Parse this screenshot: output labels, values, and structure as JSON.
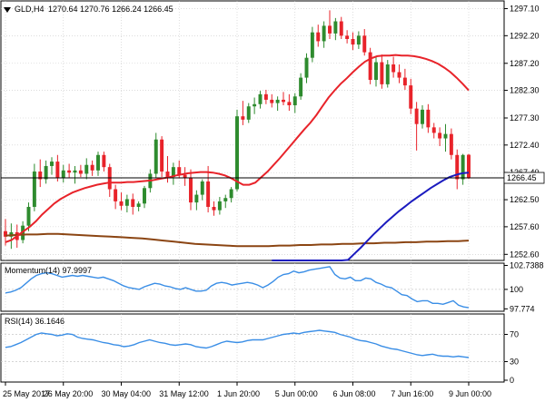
{
  "header": {
    "title": "GLD,H4",
    "ohlc": "1270.64 1270.76 1266.24 1266.45"
  },
  "price_axis": {
    "ticks": [
      "1297.10",
      "1292.20",
      "1287.20",
      "1282.30",
      "1277.30",
      "1272.40",
      "1267.40",
      "1262.50",
      "1257.60",
      "1252.60"
    ],
    "current_label": "1266.45"
  },
  "momentum_panel": {
    "label": "Momentum(14) 97.9997",
    "ticks": [
      "102.7388",
      "100",
      "97.774"
    ]
  },
  "rsi_panel": {
    "label": "RSI(14) 36.1646",
    "ticks": [
      "70",
      "30",
      "0"
    ]
  },
  "time_axis": {
    "labels": [
      "25 May 2017",
      "26 May 20:00",
      "30 May 04:00",
      "31 May 12:00",
      "1 Jun 20:00",
      "5 Jun 00:00",
      "6 Jun 08:00",
      "7 Jun 16:00",
      "9 Jun 00:00"
    ]
  },
  "colors": {
    "background": "#ffffff",
    "grid": "#c8c8c8",
    "bull": "#2e8b2e",
    "bear": "#e8232a",
    "sma_fast": "#e8232a",
    "sma_mid": "#1b1bbf",
    "sma_slow": "#8b4513",
    "indicator": "#3a8ee6",
    "text": "#000000"
  },
  "chart_data": [
    {
      "type": "candlestick",
      "symbol": "GLD",
      "timeframe": "H4",
      "current_price": 1266.45,
      "ylim": [
        1251.5,
        1298.5
      ],
      "y_ticks": [
        1297.1,
        1292.2,
        1287.2,
        1282.3,
        1277.3,
        1272.4,
        1267.4,
        1262.5,
        1257.6,
        1252.6
      ],
      "candles": [
        {
          "o": 1256.8,
          "h": 1259.0,
          "l": 1254.2,
          "c": 1255.8
        },
        {
          "o": 1255.8,
          "h": 1258.2,
          "l": 1253.6,
          "c": 1256.6
        },
        {
          "o": 1256.6,
          "h": 1258.0,
          "l": 1253.8,
          "c": 1255.2
        },
        {
          "o": 1255.2,
          "h": 1258.6,
          "l": 1254.6,
          "c": 1257.8
        },
        {
          "o": 1257.8,
          "h": 1262.0,
          "l": 1256.8,
          "c": 1261.2
        },
        {
          "o": 1261.2,
          "h": 1269.0,
          "l": 1260.4,
          "c": 1267.6
        },
        {
          "o": 1267.6,
          "h": 1269.8,
          "l": 1264.8,
          "c": 1266.2
        },
        {
          "o": 1266.2,
          "h": 1269.6,
          "l": 1265.4,
          "c": 1268.6
        },
        {
          "o": 1268.6,
          "h": 1270.2,
          "l": 1267.0,
          "c": 1269.4
        },
        {
          "o": 1269.4,
          "h": 1270.6,
          "l": 1265.8,
          "c": 1266.4
        },
        {
          "o": 1266.4,
          "h": 1268.8,
          "l": 1265.6,
          "c": 1267.8
        },
        {
          "o": 1267.8,
          "h": 1269.0,
          "l": 1266.4,
          "c": 1267.4
        },
        {
          "o": 1267.4,
          "h": 1268.6,
          "l": 1265.4,
          "c": 1267.8
        },
        {
          "o": 1267.8,
          "h": 1268.8,
          "l": 1266.6,
          "c": 1267.2
        },
        {
          "o": 1267.2,
          "h": 1270.0,
          "l": 1266.2,
          "c": 1268.8
        },
        {
          "o": 1268.8,
          "h": 1269.6,
          "l": 1266.8,
          "c": 1267.8
        },
        {
          "o": 1267.8,
          "h": 1271.2,
          "l": 1266.8,
          "c": 1270.6
        },
        {
          "o": 1270.6,
          "h": 1271.2,
          "l": 1267.6,
          "c": 1268.4
        },
        {
          "o": 1268.4,
          "h": 1269.0,
          "l": 1263.0,
          "c": 1264.4
        },
        {
          "o": 1264.4,
          "h": 1265.2,
          "l": 1260.8,
          "c": 1262.2
        },
        {
          "o": 1262.2,
          "h": 1263.8,
          "l": 1260.6,
          "c": 1261.4
        },
        {
          "o": 1261.4,
          "h": 1263.4,
          "l": 1260.2,
          "c": 1262.6
        },
        {
          "o": 1262.6,
          "h": 1263.6,
          "l": 1259.8,
          "c": 1261.2
        },
        {
          "o": 1261.2,
          "h": 1262.2,
          "l": 1260.4,
          "c": 1261.8
        },
        {
          "o": 1261.8,
          "h": 1265.0,
          "l": 1261.0,
          "c": 1264.6
        },
        {
          "o": 1264.6,
          "h": 1268.0,
          "l": 1263.8,
          "c": 1267.2
        },
        {
          "o": 1267.2,
          "h": 1274.6,
          "l": 1266.4,
          "c": 1273.4
        },
        {
          "o": 1273.4,
          "h": 1274.0,
          "l": 1266.6,
          "c": 1267.6
        },
        {
          "o": 1267.6,
          "h": 1270.4,
          "l": 1265.6,
          "c": 1266.6
        },
        {
          "o": 1266.6,
          "h": 1269.2,
          "l": 1265.2,
          "c": 1268.4
        },
        {
          "o": 1268.4,
          "h": 1269.6,
          "l": 1266.4,
          "c": 1267.0
        },
        {
          "o": 1267.0,
          "h": 1268.4,
          "l": 1265.0,
          "c": 1266.4
        },
        {
          "o": 1266.4,
          "h": 1268.0,
          "l": 1260.6,
          "c": 1262.0
        },
        {
          "o": 1262.0,
          "h": 1264.2,
          "l": 1260.6,
          "c": 1263.4
        },
        {
          "o": 1263.4,
          "h": 1266.2,
          "l": 1262.4,
          "c": 1265.8
        },
        {
          "o": 1265.8,
          "h": 1268.6,
          "l": 1260.2,
          "c": 1261.2
        },
        {
          "o": 1261.2,
          "h": 1262.2,
          "l": 1259.6,
          "c": 1260.6
        },
        {
          "o": 1260.6,
          "h": 1263.0,
          "l": 1259.8,
          "c": 1262.2
        },
        {
          "o": 1262.2,
          "h": 1263.4,
          "l": 1261.0,
          "c": 1262.8
        },
        {
          "o": 1262.8,
          "h": 1264.8,
          "l": 1262.0,
          "c": 1264.4
        },
        {
          "o": 1264.4,
          "h": 1278.8,
          "l": 1264.0,
          "c": 1277.6
        },
        {
          "o": 1277.6,
          "h": 1280.4,
          "l": 1276.0,
          "c": 1277.0
        },
        {
          "o": 1277.0,
          "h": 1280.0,
          "l": 1276.4,
          "c": 1279.4
        },
        {
          "o": 1279.4,
          "h": 1281.0,
          "l": 1278.0,
          "c": 1279.8
        },
        {
          "o": 1279.8,
          "h": 1282.2,
          "l": 1279.0,
          "c": 1281.6
        },
        {
          "o": 1281.6,
          "h": 1282.4,
          "l": 1279.8,
          "c": 1280.6
        },
        {
          "o": 1280.6,
          "h": 1281.6,
          "l": 1279.2,
          "c": 1280.0
        },
        {
          "o": 1280.0,
          "h": 1281.2,
          "l": 1278.6,
          "c": 1280.6
        },
        {
          "o": 1280.6,
          "h": 1282.0,
          "l": 1279.6,
          "c": 1280.2
        },
        {
          "o": 1280.2,
          "h": 1281.6,
          "l": 1278.6,
          "c": 1279.6
        },
        {
          "o": 1279.6,
          "h": 1281.8,
          "l": 1278.2,
          "c": 1281.2
        },
        {
          "o": 1281.2,
          "h": 1285.4,
          "l": 1280.6,
          "c": 1284.6
        },
        {
          "o": 1284.6,
          "h": 1289.0,
          "l": 1283.6,
          "c": 1288.2
        },
        {
          "o": 1288.2,
          "h": 1293.8,
          "l": 1287.4,
          "c": 1292.8
        },
        {
          "o": 1292.8,
          "h": 1294.2,
          "l": 1290.2,
          "c": 1291.2
        },
        {
          "o": 1291.2,
          "h": 1294.8,
          "l": 1290.0,
          "c": 1294.0
        },
        {
          "o": 1294.0,
          "h": 1296.8,
          "l": 1291.6,
          "c": 1292.6
        },
        {
          "o": 1292.6,
          "h": 1295.4,
          "l": 1291.4,
          "c": 1294.8
        },
        {
          "o": 1294.8,
          "h": 1295.6,
          "l": 1291.6,
          "c": 1292.2
        },
        {
          "o": 1292.2,
          "h": 1293.2,
          "l": 1290.8,
          "c": 1291.6
        },
        {
          "o": 1291.6,
          "h": 1292.8,
          "l": 1289.6,
          "c": 1290.6
        },
        {
          "o": 1290.6,
          "h": 1293.0,
          "l": 1289.8,
          "c": 1292.2
        },
        {
          "o": 1292.2,
          "h": 1293.4,
          "l": 1288.6,
          "c": 1289.2
        },
        {
          "o": 1289.2,
          "h": 1290.0,
          "l": 1283.4,
          "c": 1284.2
        },
        {
          "o": 1284.2,
          "h": 1288.4,
          "l": 1283.0,
          "c": 1287.4
        },
        {
          "o": 1287.4,
          "h": 1288.8,
          "l": 1282.6,
          "c": 1283.4
        },
        {
          "o": 1283.4,
          "h": 1287.8,
          "l": 1282.8,
          "c": 1287.0
        },
        {
          "o": 1287.0,
          "h": 1288.4,
          "l": 1284.6,
          "c": 1285.6
        },
        {
          "o": 1285.6,
          "h": 1287.0,
          "l": 1283.6,
          "c": 1284.6
        },
        {
          "o": 1284.6,
          "h": 1286.2,
          "l": 1282.4,
          "c": 1283.2
        },
        {
          "o": 1283.2,
          "h": 1284.4,
          "l": 1278.0,
          "c": 1279.0
        },
        {
          "o": 1279.0,
          "h": 1280.2,
          "l": 1271.4,
          "c": 1276.2
        },
        {
          "o": 1276.2,
          "h": 1279.6,
          "l": 1275.4,
          "c": 1278.8
        },
        {
          "o": 1278.8,
          "h": 1279.8,
          "l": 1274.6,
          "c": 1275.6
        },
        {
          "o": 1275.6,
          "h": 1276.4,
          "l": 1273.6,
          "c": 1274.6
        },
        {
          "o": 1274.6,
          "h": 1275.6,
          "l": 1272.2,
          "c": 1273.6
        },
        {
          "o": 1273.6,
          "h": 1276.2,
          "l": 1271.2,
          "c": 1274.4
        },
        {
          "o": 1274.4,
          "h": 1275.4,
          "l": 1269.8,
          "c": 1270.6
        },
        {
          "o": 1270.6,
          "h": 1271.6,
          "l": 1264.4,
          "c": 1266.2
        },
        {
          "o": 1266.2,
          "h": 1270.8,
          "l": 1265.2,
          "c": 1270.6
        },
        {
          "o": 1270.64,
          "h": 1270.76,
          "l": 1266.24,
          "c": 1266.45
        }
      ],
      "sma_fast": [
        1254.8,
        1255.2,
        1256.0,
        1256.8,
        1257.6,
        1258.6,
        1259.8,
        1260.8,
        1261.8,
        1262.6,
        1263.2,
        1263.8,
        1264.2,
        1264.6,
        1264.9,
        1265.2,
        1265.4,
        1265.6,
        1265.6,
        1265.6,
        1265.7,
        1265.7,
        1265.8,
        1265.9,
        1266.0,
        1266.2,
        1266.4,
        1266.6,
        1266.9,
        1267.1,
        1267.3,
        1267.4,
        1267.5,
        1267.5,
        1267.4,
        1267.2,
        1266.9,
        1266.4,
        1265.8,
        1265.2,
        1265.2,
        1265.6,
        1266.6,
        1267.6,
        1268.8,
        1270.0,
        1271.3,
        1272.6,
        1273.9,
        1275.2,
        1276.4,
        1277.8,
        1279.4,
        1281.0,
        1282.3,
        1283.5,
        1284.5,
        1285.6,
        1286.6,
        1287.5,
        1288.1,
        1288.5,
        1288.6,
        1288.6,
        1288.7,
        1288.6,
        1288.6,
        1288.5,
        1288.3,
        1288.0,
        1287.6,
        1287.1,
        1286.4,
        1285.6,
        1284.6,
        1283.5,
        1282.3
      ],
      "sma_mid": [
        1242.0,
        1242.6,
        1243.3,
        1244.0,
        1244.7,
        1245.4,
        1246.2,
        1247.0,
        1247.8,
        1248.7,
        1249.6,
        1250.6,
        1251.6,
        1252.7,
        1253.8,
        1255.0,
        1256.2,
        1257.3,
        1258.4,
        1259.4,
        1260.4,
        1261.3,
        1262.2,
        1263.0,
        1263.8,
        1264.6,
        1265.3,
        1266.0,
        1266.6,
        1267.0,
        1267.3,
        1267.4
      ],
      "sma_slow": [
        1256.0,
        1256.1,
        1256.2,
        1256.2,
        1256.3,
        1256.3,
        1256.2,
        1256.1,
        1256.0,
        1255.9,
        1255.8,
        1255.7,
        1255.6,
        1255.5,
        1255.3,
        1255.1,
        1254.9,
        1254.7,
        1254.5,
        1254.4,
        1254.3,
        1254.2,
        1254.1,
        1254.1,
        1254.1,
        1254.1,
        1254.2,
        1254.2,
        1254.3,
        1254.3,
        1254.4,
        1254.4,
        1254.5,
        1254.5,
        1254.6,
        1254.6,
        1254.7,
        1254.7,
        1254.8,
        1254.8,
        1254.9,
        1254.9,
        1255.0,
        1255.0,
        1255.1
      ],
      "sma_mid_start_index": 46,
      "x_ticks_index": [
        0,
        10,
        20,
        30,
        40,
        50,
        60,
        70,
        80
      ]
    },
    {
      "type": "line",
      "name": "Momentum(14)",
      "ylim": [
        97.5,
        103.0
      ],
      "y_ticks": [
        102.7388,
        100,
        97.774
      ],
      "reference_line": 100,
      "values": [
        99.6,
        99.7,
        99.9,
        100.2,
        100.7,
        101.2,
        101.6,
        101.8,
        101.9,
        101.8,
        101.6,
        101.4,
        101.5,
        101.6,
        101.5,
        101.6,
        101.5,
        101.4,
        101.3,
        101.4,
        101.2,
        101.0,
        100.7,
        100.4,
        100.2,
        100.1,
        100.0,
        100.3,
        100.5,
        100.7,
        100.6,
        100.4,
        100.3,
        100.1,
        100.0,
        100.2,
        100.0,
        99.8,
        99.8,
        99.9,
        100.4,
        100.7,
        100.8,
        100.7,
        100.5,
        100.6,
        100.7,
        100.8,
        100.7,
        100.5,
        100.2,
        100.5,
        100.9,
        101.4,
        101.7,
        101.8,
        102.1,
        101.9,
        102.0,
        102.2,
        102.3,
        102.4,
        102.5,
        102.6,
        101.7,
        101.3,
        101.2,
        101.4,
        101.0,
        101.0,
        101.3,
        101.2,
        100.8,
        100.6,
        100.3,
        100.2,
        99.8,
        99.4,
        99.3,
        98.9,
        98.6,
        98.7,
        98.7,
        98.4,
        98.4,
        98.3,
        98.5,
        98.7,
        98.2,
        98.0,
        97.9
      ]
    },
    {
      "type": "line",
      "name": "RSI(14)",
      "ylim": [
        0,
        100
      ],
      "y_ticks": [
        70,
        30,
        0
      ],
      "reference_lines": [
        70,
        30
      ],
      "values": [
        51,
        52,
        55,
        58,
        62,
        66,
        70,
        72,
        71,
        70,
        68,
        69,
        71,
        70,
        66,
        64,
        63,
        62,
        60,
        58,
        57,
        55,
        54,
        52,
        53,
        55,
        58,
        60,
        62,
        60,
        58,
        57,
        55,
        54,
        55,
        56,
        55,
        52,
        51,
        50,
        52,
        55,
        58,
        60,
        59,
        58,
        59,
        61,
        62,
        62,
        62,
        64,
        66,
        68,
        70,
        71,
        72,
        71,
        73,
        74,
        75,
        76,
        75,
        74,
        73,
        70,
        68,
        66,
        63,
        61,
        60,
        58,
        56,
        53,
        51,
        49,
        48,
        46,
        44,
        42,
        40,
        39,
        40,
        41,
        39,
        38,
        38,
        37,
        38,
        37,
        36
      ]
    }
  ]
}
